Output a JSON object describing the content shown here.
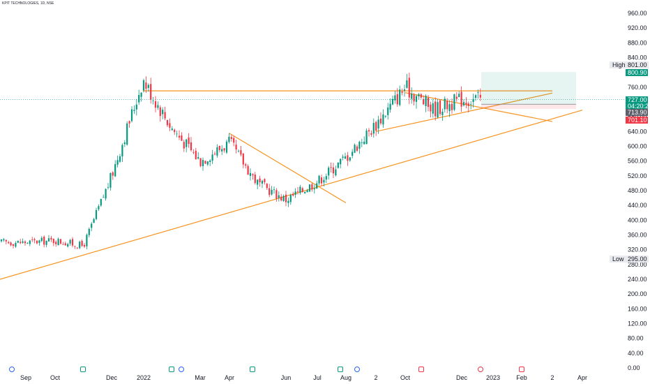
{
  "symbol": {
    "title": "KPIT TECHNOLOGIES, 1D, NSE"
  },
  "price_axis": {
    "high_label": "High",
    "high_value": "801.00",
    "low_label": "Low",
    "low_value": "295.00",
    "tags": [
      {
        "name": "target-price-tag",
        "text": "800.90",
        "value": 800.9,
        "color": "#089981"
      },
      {
        "name": "last-price-tag",
        "text": "727.00",
        "value": 727.0,
        "color": "#089981"
      },
      {
        "name": "countdown-tag",
        "text": "04:20:26",
        "value": 727.0,
        "color": "#089981"
      },
      {
        "name": "entry-price-tag",
        "text": "713.90",
        "value": 713.9,
        "color": "#5d606b"
      },
      {
        "name": "stop-price-tag",
        "text": "701.10",
        "value": 701.1,
        "color": "#f23645"
      }
    ]
  },
  "chart_data": {
    "type": "candlestick",
    "title": "KPIT TECHNOLOGIES, 1D, NSE",
    "ylim": [
      0,
      980
    ],
    "y_ticks": [
      "0.00",
      "40.00",
      "80.00",
      "120.00",
      "160.00",
      "200.00",
      "240.00",
      "280.00",
      "320.00",
      "360.00",
      "400.00",
      "440.00",
      "480.00",
      "520.00",
      "560.00",
      "600.00",
      "640.00",
      "680.00",
      "720.00",
      "760.00",
      "800.00",
      "840.00",
      "880.00",
      "920.00",
      "960.00"
    ],
    "x_ticks": [
      "Sep",
      "Oct",
      "Dec",
      "2022",
      "Mar",
      "Apr",
      "Jun",
      "Jul",
      "Aug",
      "2",
      "Oct",
      "Dec",
      "2023",
      "Feb",
      "2",
      "Apr"
    ],
    "series": [
      {
        "values": [
          {
            "date": "2021-09",
            "price": 340
          },
          {
            "date": "2021-10",
            "price": 345
          },
          {
            "date": "2021-11",
            "price": 330
          },
          {
            "date": "2021-12",
            "price": 520
          },
          {
            "date": "2022-01",
            "price": 780
          },
          {
            "date": "2022-02",
            "price": 650
          },
          {
            "date": "2022-03",
            "price": 560
          },
          {
            "date": "2022-04",
            "price": 610
          },
          {
            "date": "2022-05",
            "price": 500
          },
          {
            "date": "2022-06",
            "price": 455
          },
          {
            "date": "2022-07",
            "price": 505
          },
          {
            "date": "2022-08",
            "price": 570
          },
          {
            "date": "2022-09",
            "price": 660
          },
          {
            "date": "2022-10",
            "price": 760
          },
          {
            "date": "2022-11",
            "price": 700
          },
          {
            "date": "2022-12",
            "price": 727
          }
        ]
      }
    ],
    "trendlines": [
      {
        "name": "resistance-line",
        "from": {
          "date": "2022-01",
          "price": 750
        },
        "to": {
          "date": "2023-03",
          "price": 750
        }
      },
      {
        "name": "long-support-line",
        "from": {
          "date": "2021-08",
          "price": 240
        },
        "to": {
          "date": "2023-04",
          "price": 698
        }
      },
      {
        "name": "falling-wedge-line",
        "from": {
          "date": "2022-04",
          "price": 635
        },
        "to": {
          "date": "2022-08",
          "price": 447
        }
      },
      {
        "name": "rising-channel-line",
        "from": {
          "date": "2022-09",
          "price": 640
        },
        "to": {
          "date": "2023-03",
          "price": 744
        }
      },
      {
        "name": "falling-channel-line",
        "from": {
          "date": "2022-10",
          "price": 745
        },
        "to": {
          "date": "2023-03",
          "price": 667
        }
      }
    ],
    "position": {
      "entry": 713.9,
      "target": 800.9,
      "stop": 701.1
    }
  }
}
